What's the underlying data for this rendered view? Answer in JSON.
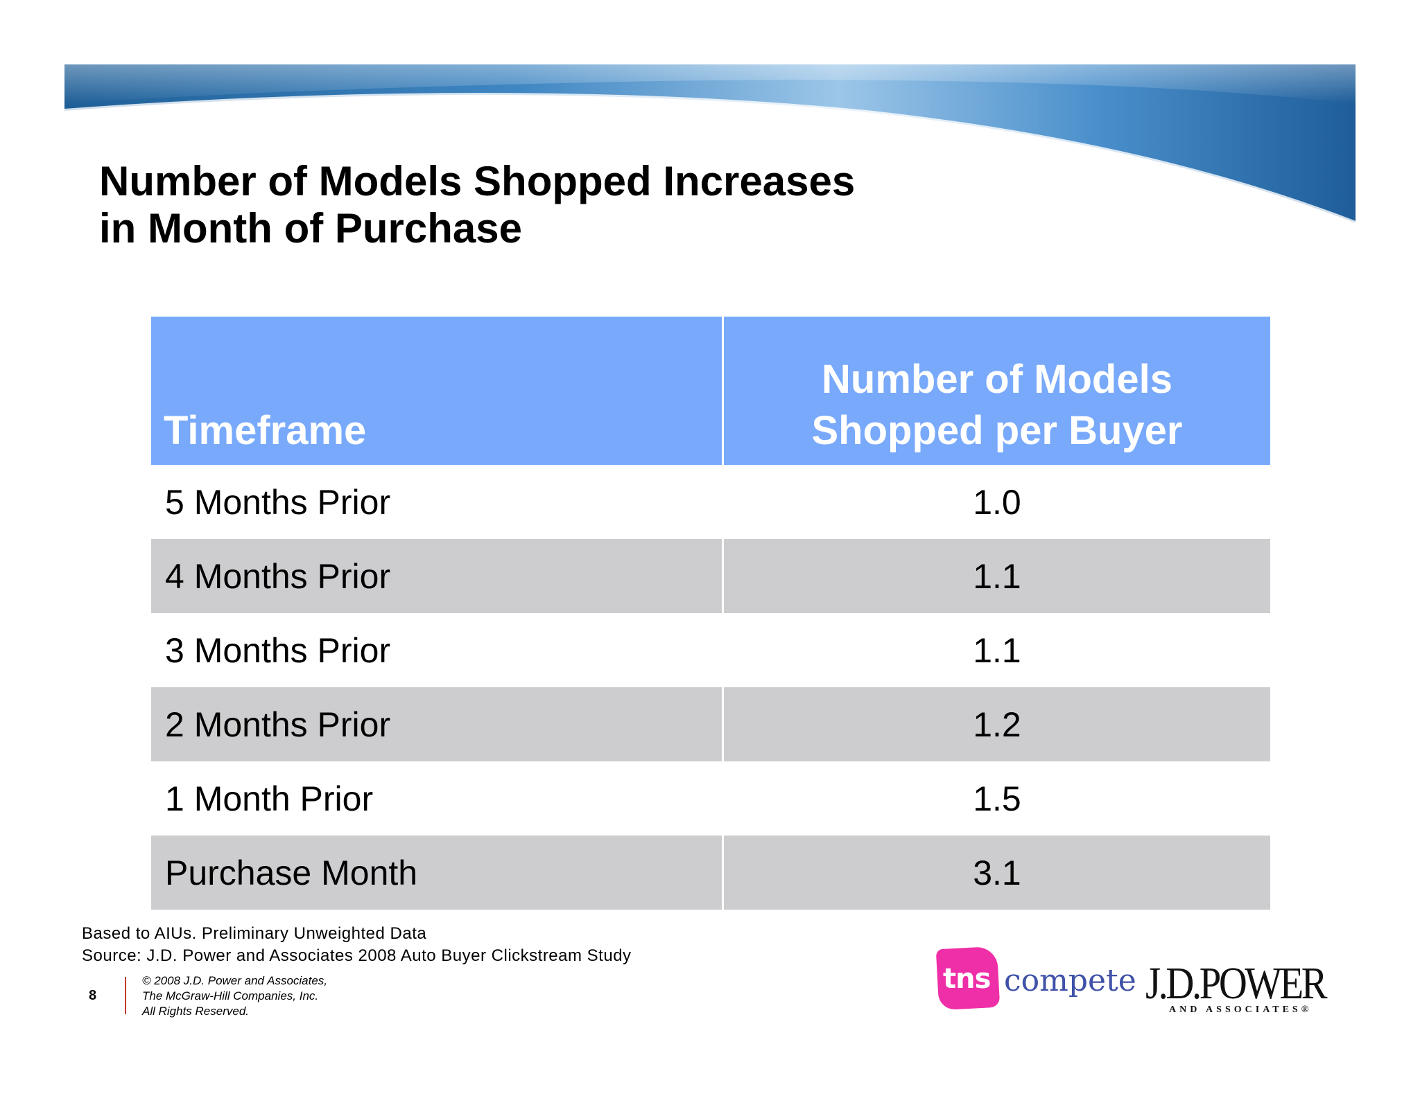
{
  "slide": {
    "title_line1": "Number of Models Shopped Increases",
    "title_line2": "in Month of Purchase"
  },
  "table": {
    "headers": [
      "Timeframe",
      "Number of Models",
      "Shopped per Buyer"
    ],
    "rows": [
      {
        "timeframe": "5 Months Prior",
        "value": "1.0"
      },
      {
        "timeframe": "4 Months Prior",
        "value": "1.1"
      },
      {
        "timeframe": "3 Months Prior",
        "value": "1.1"
      },
      {
        "timeframe": "2 Months Prior",
        "value": "1.2"
      },
      {
        "timeframe": "1 Month Prior",
        "value": "1.5"
      },
      {
        "timeframe": "Purchase Month",
        "value": "3.1"
      }
    ]
  },
  "footer": {
    "note_line1": "Based to AIUs. Preliminary Unweighted Data",
    "note_line2": "Source: J.D. Power and Associates 2008 Auto Buyer Clickstream Study",
    "page_number": "8",
    "copyright_line1": "© 2008 J.D. Power and Associates,",
    "copyright_line2": "The McGraw-Hill Companies, Inc.",
    "copyright_line3": "All Rights Reserved."
  },
  "logos": {
    "tns": "tns",
    "compete": "compete",
    "jdpower": "J.D.POWER",
    "jdpower_sub": "AND ASSOCIATES®"
  },
  "colors": {
    "header_bg": "#78a9fb",
    "shaded_row_bg": "#cdcdcf",
    "tns_pink": "#ef2fa8",
    "compete_blue": "#3f51a8"
  }
}
